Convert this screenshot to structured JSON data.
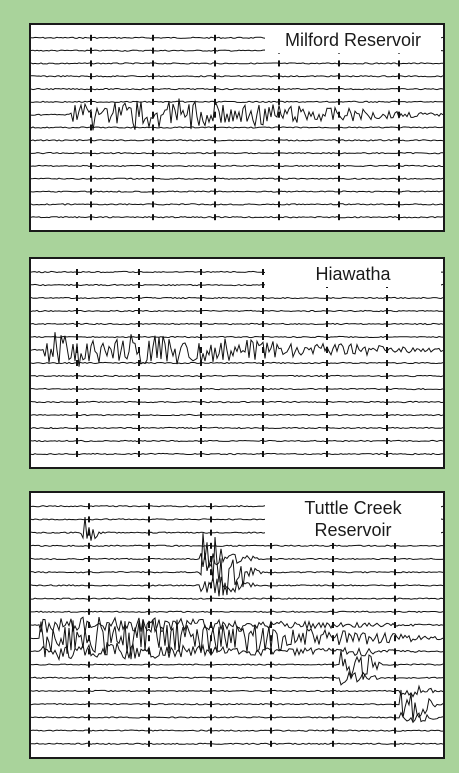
{
  "background_color": "#a9d39b",
  "trace_color": "#111111",
  "seismograms": [
    {
      "label": "Milford Reservoir"
    },
    {
      "label": "Hiawatha"
    },
    {
      "label": "Tuttle Creek\nReservoir"
    }
  ]
}
